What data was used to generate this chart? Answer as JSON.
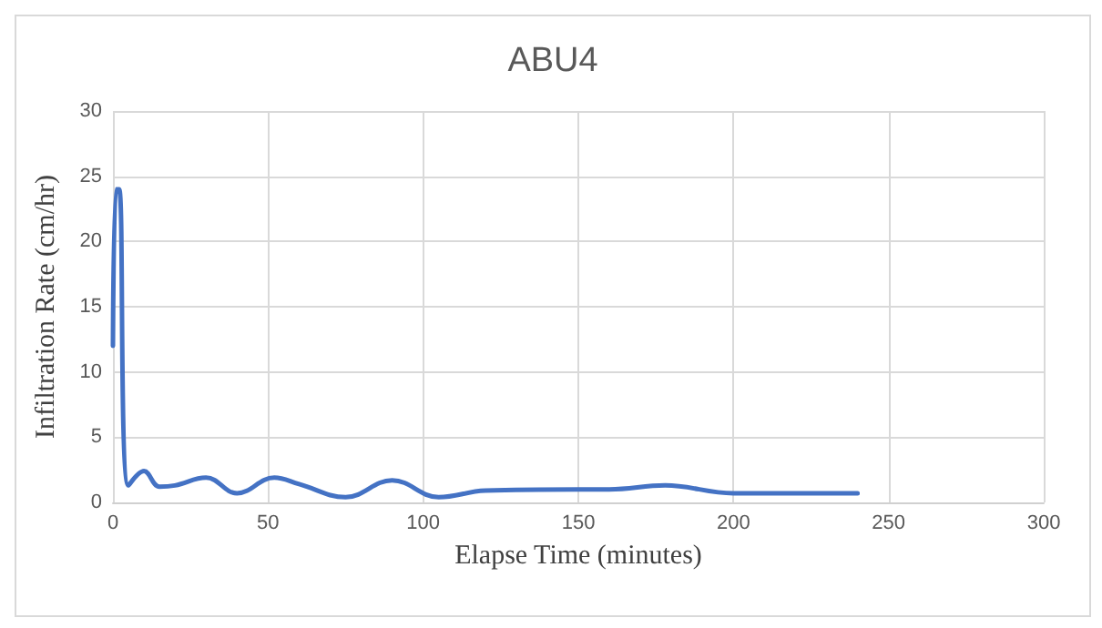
{
  "chart_data": {
    "type": "line",
    "title": "ABU4",
    "xlabel": "Elapse Time (minutes)",
    "ylabel": "Infiltration Rate (cm/hr)",
    "x": [
      0,
      1,
      2,
      5,
      10,
      15,
      20,
      30,
      40,
      52,
      60,
      75,
      90,
      105,
      120,
      150,
      160,
      178,
      200,
      220,
      240
    ],
    "series": [
      {
        "color": "#4472c4",
        "values": [
          12,
          24,
          24,
          1.3,
          2.4,
          1.2,
          1.3,
          1.9,
          0.7,
          1.9,
          1.4,
          0.4,
          1.7,
          0.4,
          0.9,
          1,
          1,
          1.3,
          0.7,
          0.7,
          0.7
        ]
      }
    ],
    "xlim": [
      0,
      300
    ],
    "xticks": [
      0,
      50,
      100,
      150,
      200,
      250,
      300
    ],
    "ylim": [
      0,
      30
    ],
    "yticks": [
      0,
      5,
      10,
      15,
      20,
      25,
      30
    ],
    "grid": true,
    "marker": "none",
    "line_style": "solid"
  }
}
